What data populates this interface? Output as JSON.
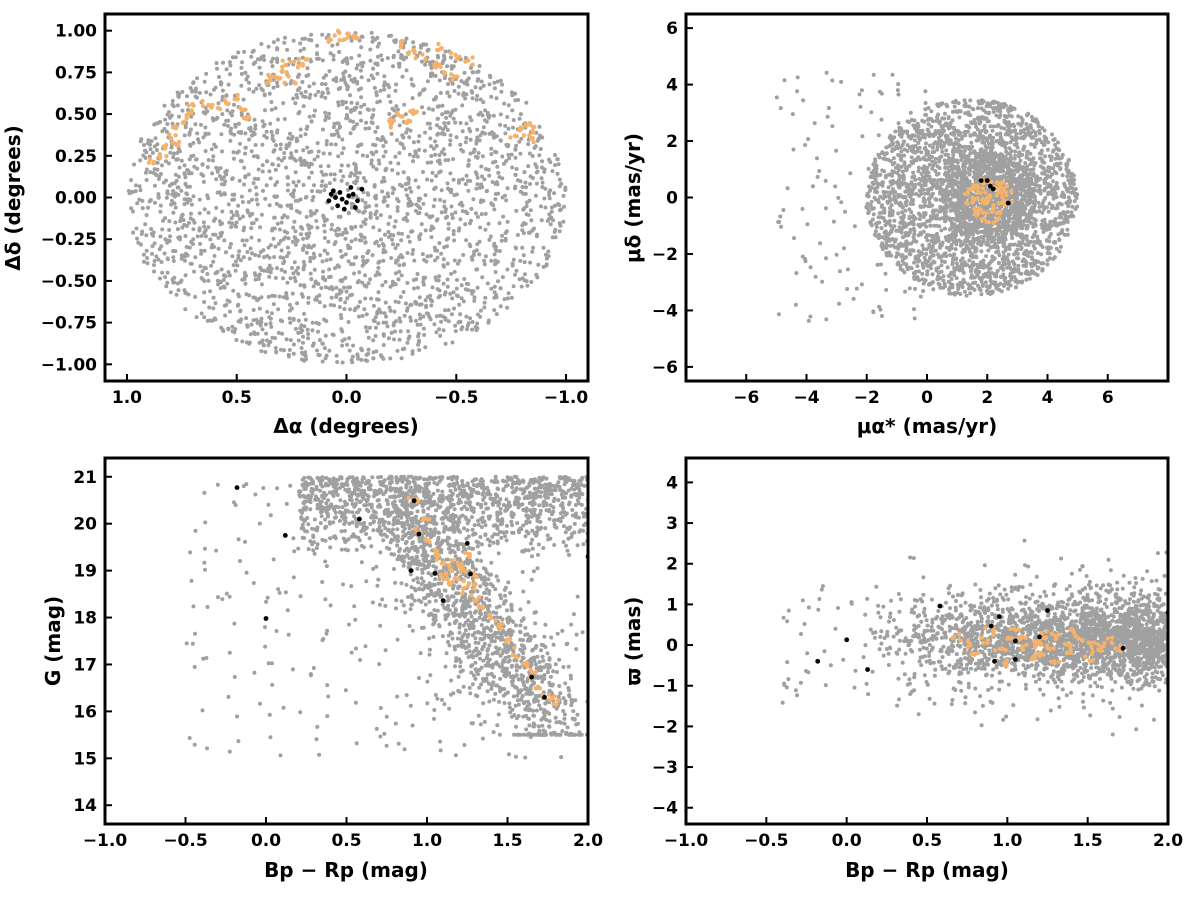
{
  "colors": {
    "field": "#a0a0a0",
    "members": "#f5b26b",
    "highlight": "#000000",
    "axes": "#000000"
  },
  "chart_data": [
    {
      "type": "scatter",
      "xlabel": "Δα (degrees)",
      "ylabel": "Δδ (degrees)",
      "xlim": [
        1.1,
        -1.1
      ],
      "ylim": [
        -1.1,
        1.1
      ],
      "xticks": [
        1.0,
        0.5,
        0.0,
        -0.5,
        -1.0
      ],
      "yticks": [
        1.0,
        0.75,
        0.5,
        0.25,
        0.0,
        -0.25,
        -0.5,
        -0.75,
        -1.0
      ],
      "xtick_labels": [
        "1.0",
        "0.5",
        "0.0",
        "−0.5",
        "−1.0"
      ],
      "ytick_labels": [
        "1.00",
        "0.75",
        "0.50",
        "0.25",
        "0.00",
        "−0.25",
        "−0.50",
        "−0.75",
        "−1.00"
      ],
      "grid": false,
      "field_distribution": {
        "shape": "disk",
        "center": [
          0,
          0
        ],
        "radius": 1.0,
        "count": 2600
      },
      "member_points": [
        [
          0.78,
          0.41
        ],
        [
          0.75,
          0.45
        ],
        [
          0.8,
          0.36
        ],
        [
          0.72,
          0.5
        ],
        [
          0.7,
          0.55
        ],
        [
          0.65,
          0.56
        ],
        [
          0.6,
          0.54
        ],
        [
          0.55,
          0.57
        ],
        [
          0.5,
          0.58
        ],
        [
          0.48,
          0.52
        ],
        [
          0.45,
          0.48
        ],
        [
          0.82,
          0.3
        ],
        [
          0.85,
          0.25
        ],
        [
          0.88,
          0.22
        ],
        [
          0.76,
          0.33
        ],
        [
          0.3,
          0.75
        ],
        [
          0.28,
          0.8
        ],
        [
          0.25,
          0.7
        ],
        [
          0.22,
          0.78
        ],
        [
          0.32,
          0.72
        ],
        [
          0.2,
          0.82
        ],
        [
          0.35,
          0.7
        ],
        [
          0.02,
          0.97
        ],
        [
          0.05,
          0.98
        ],
        [
          -0.02,
          0.96
        ],
        [
          0.08,
          0.95
        ],
        [
          -0.05,
          0.97
        ],
        [
          -0.25,
          0.92
        ],
        [
          -0.3,
          0.88
        ],
        [
          -0.35,
          0.85
        ],
        [
          -0.4,
          0.8
        ],
        [
          -0.45,
          0.76
        ],
        [
          -0.48,
          0.72
        ],
        [
          -0.5,
          0.85
        ],
        [
          -0.55,
          0.82
        ],
        [
          -0.42,
          0.9
        ],
        [
          -0.22,
          0.47
        ],
        [
          -0.25,
          0.5
        ],
        [
          -0.28,
          0.46
        ],
        [
          -0.3,
          0.52
        ],
        [
          -0.2,
          0.44
        ],
        [
          -0.8,
          0.4
        ],
        [
          -0.82,
          0.44
        ],
        [
          -0.85,
          0.42
        ],
        [
          -0.78,
          0.38
        ],
        [
          -0.83,
          0.36
        ]
      ],
      "highlight_points": [
        [
          0.05,
          0.0
        ],
        [
          0.03,
          0.03
        ],
        [
          -0.02,
          0.06
        ],
        [
          0.0,
          -0.03
        ],
        [
          0.04,
          -0.05
        ],
        [
          -0.03,
          0.02
        ],
        [
          0.06,
          0.04
        ],
        [
          -0.05,
          -0.02
        ],
        [
          0.01,
          -0.07
        ],
        [
          -0.07,
          0.05
        ],
        [
          0.08,
          -0.02
        ],
        [
          -0.01,
          0.01
        ],
        [
          0.02,
          -0.01
        ],
        [
          -0.04,
          -0.06
        ],
        [
          0.07,
          0.02
        ]
      ]
    },
    {
      "type": "scatter",
      "xlabel": "μα* (mas/yr)",
      "ylabel": "μδ (mas/yr)",
      "xlim": [
        -8,
        8
      ],
      "ylim": [
        -6.5,
        6.5
      ],
      "xticks": [
        -6,
        -4,
        -2,
        0,
        2,
        4,
        6
      ],
      "yticks": [
        6,
        4,
        2,
        0,
        -2,
        -4,
        -6
      ],
      "xtick_labels": [
        "−6",
        "−4",
        "−2",
        "0",
        "2",
        "4",
        "6"
      ],
      "ytick_labels": [
        "6",
        "4",
        "2",
        "0",
        "−2",
        "−4",
        "−6"
      ],
      "grid": false,
      "field_distribution": {
        "shape": "disk",
        "center": [
          1.5,
          0
        ],
        "radius": 3.5,
        "extra_center": [
          2,
          0
        ],
        "count": 2400
      },
      "member_points": [
        [
          1.8,
          0.2
        ],
        [
          2.0,
          -0.1
        ],
        [
          2.2,
          0.3
        ],
        [
          1.7,
          -0.4
        ],
        [
          2.4,
          0.1
        ],
        [
          1.9,
          0.5
        ],
        [
          2.1,
          -0.6
        ],
        [
          1.6,
          0.0
        ],
        [
          2.3,
          -0.3
        ],
        [
          2.0,
          0.6
        ],
        [
          1.8,
          -0.7
        ],
        [
          2.5,
          0.4
        ],
        [
          1.5,
          0.3
        ],
        [
          2.2,
          -0.9
        ],
        [
          2.6,
          -0.2
        ],
        [
          1.4,
          -0.2
        ],
        [
          2.0,
          0.0
        ],
        [
          1.9,
          -0.2
        ],
        [
          2.1,
          0.1
        ],
        [
          2.3,
          0.5
        ],
        [
          1.7,
          0.4
        ],
        [
          2.4,
          -0.6
        ],
        [
          1.6,
          -0.5
        ],
        [
          2.7,
          0.2
        ],
        [
          1.3,
          0.1
        ]
      ],
      "highlight_points": [
        [
          1.8,
          0.6
        ],
        [
          2.2,
          0.3
        ],
        [
          2.7,
          -0.2
        ],
        [
          2.0,
          0.6
        ],
        [
          2.1,
          0.4
        ]
      ]
    },
    {
      "type": "scatter",
      "xlabel": "Bp − Rp (mag)",
      "ylabel": "G (mag)",
      "xlim": [
        -1.0,
        2.0
      ],
      "ylim": [
        13.6,
        21.4
      ],
      "xticks": [
        -1.0,
        -0.5,
        0.0,
        0.5,
        1.0,
        1.5,
        2.0
      ],
      "yticks": [
        21,
        20,
        19,
        18,
        17,
        16,
        15,
        14
      ],
      "xtick_labels": [
        "−1.0",
        "−0.5",
        "0.0",
        "0.5",
        "1.0",
        "1.5",
        "2.0"
      ],
      "ytick_labels": [
        "21",
        "20",
        "19",
        "18",
        "17",
        "16",
        "15",
        "14"
      ],
      "grid": false,
      "field_distribution": {
        "shape": "cmd",
        "count": 2600
      },
      "member_points": [
        [
          1.1,
          19.2
        ],
        [
          1.15,
          19.0
        ],
        [
          1.2,
          18.8
        ],
        [
          1.25,
          18.6
        ],
        [
          1.3,
          18.4
        ],
        [
          1.35,
          18.2
        ],
        [
          1.4,
          18.0
        ],
        [
          1.45,
          17.8
        ],
        [
          1.5,
          17.5
        ],
        [
          1.55,
          17.2
        ],
        [
          1.6,
          17.0
        ],
        [
          1.65,
          16.8
        ],
        [
          1.7,
          16.5
        ],
        [
          1.75,
          16.3
        ],
        [
          1.8,
          16.2
        ],
        [
          1.05,
          19.4
        ],
        [
          1.0,
          19.6
        ],
        [
          0.95,
          19.8
        ],
        [
          1.2,
          19.1
        ],
        [
          1.1,
          18.9
        ],
        [
          1.25,
          19.3
        ],
        [
          1.15,
          18.7
        ],
        [
          1.3,
          18.9
        ],
        [
          1.0,
          20.1
        ],
        [
          0.9,
          20.5
        ],
        [
          1.22,
          19.0
        ],
        [
          1.18,
          19.2
        ],
        [
          1.12,
          18.8
        ],
        [
          1.28,
          18.7
        ],
        [
          1.08,
          19.3
        ]
      ],
      "highlight_points": [
        [
          -0.18,
          20.77
        ],
        [
          0.58,
          20.1
        ],
        [
          0.12,
          19.75
        ],
        [
          0.92,
          20.49
        ],
        [
          0.95,
          19.78
        ],
        [
          1.25,
          19.58
        ],
        [
          0.9,
          19.0
        ],
        [
          1.05,
          18.94
        ],
        [
          1.27,
          18.93
        ],
        [
          1.1,
          18.36
        ],
        [
          0.0,
          17.98
        ],
        [
          1.65,
          16.73
        ],
        [
          1.73,
          16.3
        ],
        [
          2.0,
          19.3
        ]
      ]
    },
    {
      "type": "scatter",
      "xlabel": "Bp − Rp (mag)",
      "ylabel": "ϖ (mas)",
      "xlim": [
        -1.0,
        2.0
      ],
      "ylim": [
        -4.4,
        4.6
      ],
      "xticks": [
        -1.0,
        -0.5,
        0.0,
        0.5,
        1.0,
        1.5,
        2.0
      ],
      "yticks": [
        4,
        3,
        2,
        1,
        0,
        -1,
        -2,
        -3,
        -4
      ],
      "xtick_labels": [
        "−1.0",
        "−0.5",
        "0.0",
        "0.5",
        "1.0",
        "1.5",
        "2.0"
      ],
      "ytick_labels": [
        "4",
        "3",
        "2",
        "1",
        "0",
        "−1",
        "−2",
        "−3",
        "−4"
      ],
      "grid": false,
      "field_distribution": {
        "shape": "band",
        "count": 2600
      },
      "member_points": [
        [
          1.0,
          0.1
        ],
        [
          1.1,
          -0.1
        ],
        [
          1.2,
          0.0
        ],
        [
          1.3,
          0.2
        ],
        [
          1.4,
          -0.2
        ],
        [
          1.5,
          0.1
        ],
        [
          1.6,
          0.0
        ],
        [
          0.9,
          0.3
        ],
        [
          0.8,
          -0.2
        ],
        [
          1.05,
          0.4
        ],
        [
          1.15,
          -0.3
        ],
        [
          1.25,
          0.3
        ],
        [
          1.35,
          0.0
        ],
        [
          1.45,
          0.2
        ],
        [
          1.55,
          -0.1
        ],
        [
          1.65,
          0.1
        ],
        [
          1.7,
          -0.1
        ],
        [
          0.95,
          -0.1
        ],
        [
          1.1,
          0.2
        ],
        [
          1.2,
          -0.2
        ],
        [
          1.3,
          -0.4
        ],
        [
          1.4,
          0.4
        ],
        [
          0.85,
          0.1
        ],
        [
          1.0,
          -0.5
        ],
        [
          1.5,
          -0.3
        ],
        [
          0.75,
          0.0
        ],
        [
          0.7,
          0.2
        ],
        [
          1.18,
          0.05
        ],
        [
          1.22,
          0.15
        ],
        [
          1.28,
          -0.05
        ]
      ],
      "highlight_points": [
        [
          -0.18,
          -0.4
        ],
        [
          0.0,
          0.13
        ],
        [
          0.13,
          -0.6
        ],
        [
          0.58,
          0.96
        ],
        [
          0.9,
          0.47
        ],
        [
          0.92,
          -0.4
        ],
        [
          0.95,
          0.7
        ],
        [
          1.05,
          0.1
        ],
        [
          1.05,
          -0.35
        ],
        [
          1.2,
          0.2
        ],
        [
          1.25,
          0.85
        ],
        [
          1.72,
          -0.08
        ],
        [
          2.0,
          0.8
        ]
      ]
    }
  ]
}
